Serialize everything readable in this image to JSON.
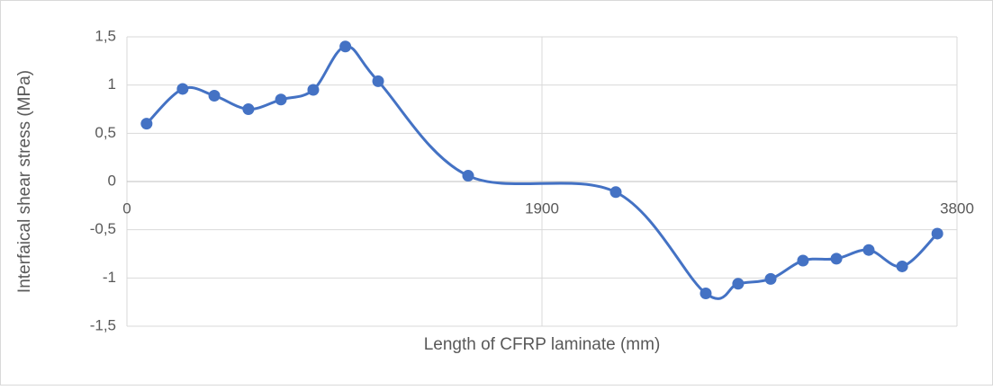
{
  "chart_data": {
    "type": "line",
    "x_label": "Length of CFRP laminate (mm)",
    "y_label": "Interfaical shear stress (MPa)",
    "series": [
      {
        "color": "#4472c4",
        "x": [
          90,
          255,
          400,
          556,
          705,
          853,
          1000,
          1150,
          1562,
          2238,
          2650,
          2798,
          2947,
          3095,
          3248,
          3396,
          3549,
          3710
        ],
        "values": [
          0.6,
          0.96,
          0.89,
          0.75,
          0.85,
          0.95,
          1.4,
          1.04,
          0.06,
          -0.11,
          -1.16,
          -1.06,
          -1.01,
          -0.82,
          -0.8,
          -0.71,
          -0.88,
          -0.54
        ]
      }
    ],
    "xlim": [
      0,
      3800
    ],
    "xticks": [
      0,
      1900,
      3800
    ],
    "ylim": [
      -1.5,
      1.5
    ],
    "yticks": [
      {
        "value": -1.5,
        "label": "-1,5"
      },
      -1,
      {
        "value": -0.5,
        "label": "-0,5"
      },
      0,
      {
        "value": 0.5,
        "label": "0,5"
      },
      1,
      {
        "value": 1.5,
        "label": "1,5"
      }
    ],
    "grid": true,
    "smooth": true
  }
}
